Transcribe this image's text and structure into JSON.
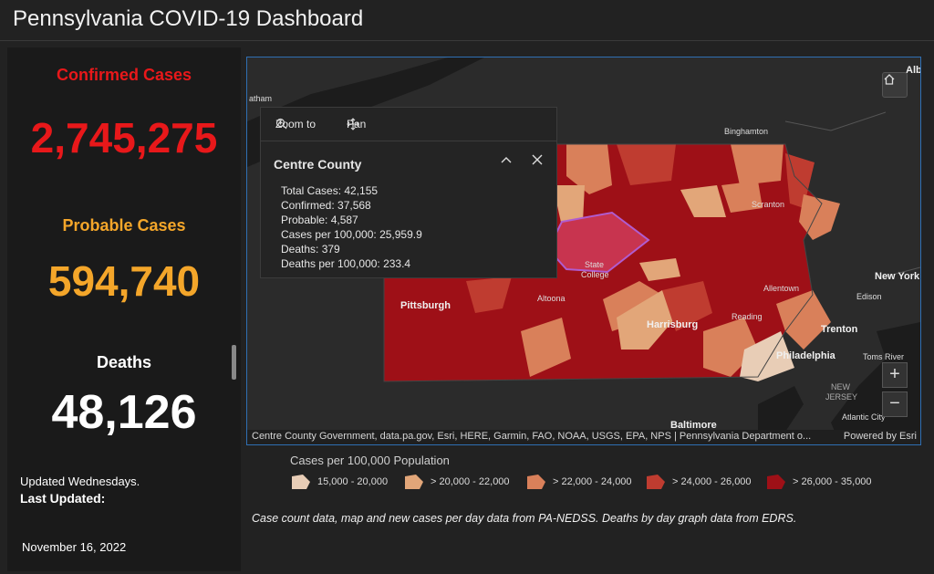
{
  "header": {
    "title": "Pennsylvania COVID-19 Dashboard"
  },
  "stats": {
    "confirmed": {
      "label": "Confirmed Cases",
      "value": "2,745,275",
      "color": "#e8181a"
    },
    "probable": {
      "label": "Probable Cases",
      "value": "594,740",
      "color": "#f4a62a"
    },
    "deaths": {
      "label": "Deaths",
      "value": "48,126",
      "color": "#ffffff"
    }
  },
  "updated": {
    "line1": "Updated Wednesdays.",
    "line2": "Last Updated:",
    "date": "November 16, 2022"
  },
  "popup": {
    "zoom_label": "Zoom to",
    "pan_label": "Pan",
    "title": "Centre County",
    "rows": [
      "Total Cases: 42,155",
      "Confirmed: 37,568",
      "Probable: 4,587",
      "Cases per 100,000: 25,959.9",
      "Deaths: 379",
      "Deaths per 100,000: 233.4"
    ]
  },
  "map": {
    "labels": {
      "pittsburgh": "Pittsburgh",
      "altoona": "Altoona",
      "state": "State",
      "college": "College",
      "harrisburg": "Harrisburg",
      "reading": "Reading",
      "allentown": "Allentown",
      "trenton": "Trenton",
      "philadelphia": "Philadelphia",
      "scranton": "Scranton",
      "binghamton": "Binghamton",
      "new_york": "New York",
      "edison": "Edison",
      "toms_river": "Toms River",
      "new": "NEW",
      "jersey": "JERSEY",
      "atlantic_city": "Atlantic City",
      "baltimore": "Baltimore",
      "alb": "Alb",
      "atham": "atham"
    },
    "attribution": "Centre County Government, data.pa.gov, Esri, HERE, Garmin, FAO, NOAA, USGS, EPA, NPS | Pennsylvania Department o...",
    "powered_by": "Powered by Esri"
  },
  "legend": {
    "title": "Cases per 100,000 Population",
    "items": [
      {
        "label": "15,000 - 20,000",
        "color": "#e8cdb6"
      },
      {
        "label": "> 20,000 - 22,000",
        "color": "#e2a679"
      },
      {
        "label": "> 22,000 - 24,000",
        "color": "#d9805a"
      },
      {
        "label": "> 24,000 - 26,000",
        "color": "#bf3c30"
      },
      {
        "label": "> 26,000 - 35,000",
        "color": "#9e1017"
      }
    ]
  },
  "footnote": "Case count data, map and new cases per day data from PA-NEDSS.  Deaths by day graph data from EDRS."
}
